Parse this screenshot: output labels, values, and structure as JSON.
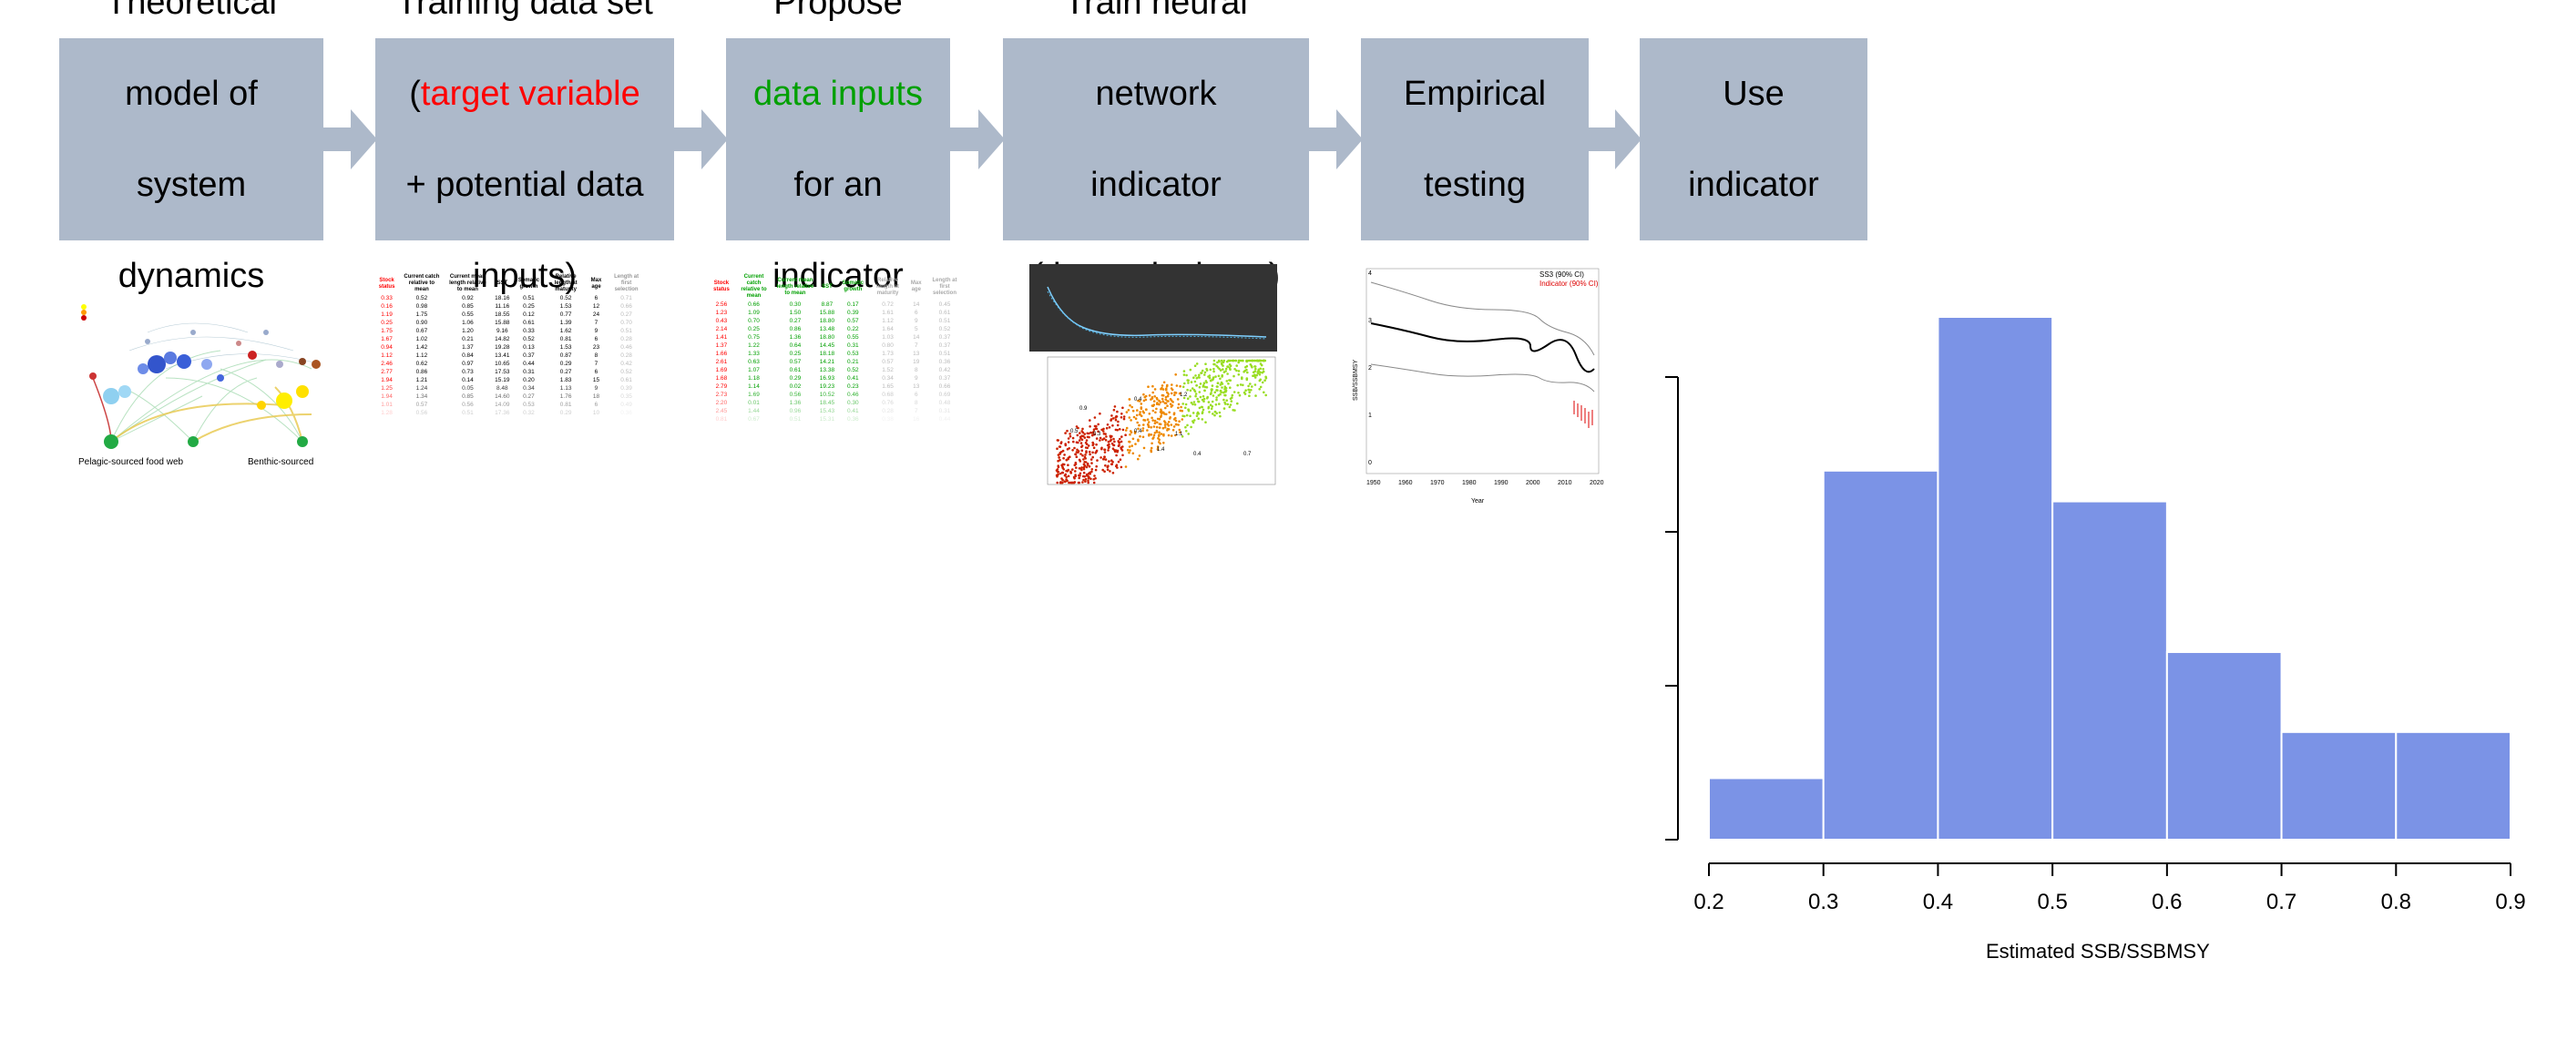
{
  "steps": [
    {
      "lines": [
        "Theoretical",
        "model of",
        "system",
        "dynamics"
      ]
    },
    {
      "line1": "Training data set",
      "paren_open": "(",
      "target": "target variable",
      "line3": "+ potential data",
      "line4": "inputs)"
    },
    {
      "line1": "Propose",
      "inputs": "data inputs",
      "line3": "for an",
      "line4": "indicator"
    },
    {
      "lines": [
        "Train neural",
        "network",
        "indicator",
        "(theoretical test)"
      ]
    },
    {
      "lines": [
        "Empirical",
        "testing"
      ]
    },
    {
      "lines": [
        "Use",
        "indicator"
      ]
    }
  ],
  "foodweb": {
    "pelagic_label": "Pelagic-sourced food web",
    "benthic_label": "Benthic-sourced"
  },
  "table1": {
    "headers": [
      "Stock status",
      "Current catch relative to mean",
      "Current mean length relative to mean",
      "SST",
      "Somatic growth",
      "Relative length at maturity",
      "Max age",
      "Length at first selection"
    ],
    "rows": [
      [
        "0.33",
        "0.52",
        "0.92",
        "18.16",
        "0.51",
        "0.52",
        "6",
        "0.71"
      ],
      [
        "0.16",
        "0.98",
        "0.85",
        "11.16",
        "0.25",
        "1.53",
        "12",
        "0.66"
      ],
      [
        "1.19",
        "1.75",
        "0.55",
        "18.55",
        "0.12",
        "0.77",
        "24",
        "0.27"
      ],
      [
        "0.25",
        "0.90",
        "1.06",
        "15.88",
        "0.61",
        "1.39",
        "7",
        "0.70"
      ],
      [
        "1.75",
        "0.67",
        "1.20",
        "9.16",
        "0.33",
        "1.62",
        "9",
        "0.51"
      ],
      [
        "1.67",
        "1.02",
        "0.21",
        "14.82",
        "0.52",
        "0.81",
        "6",
        "0.28"
      ],
      [
        "0.94",
        "1.42",
        "1.37",
        "19.28",
        "0.13",
        "1.53",
        "23",
        "0.46"
      ],
      [
        "1.12",
        "1.12",
        "0.84",
        "13.41",
        "0.37",
        "0.87",
        "8",
        "0.28"
      ],
      [
        "2.46",
        "0.62",
        "0.97",
        "10.65",
        "0.44",
        "0.29",
        "7",
        "0.42"
      ],
      [
        "2.77",
        "0.86",
        "0.73",
        "17.53",
        "0.31",
        "0.27",
        "6",
        "0.52"
      ],
      [
        "1.94",
        "1.21",
        "0.14",
        "15.19",
        "0.20",
        "1.83",
        "15",
        "0.61"
      ],
      [
        "1.25",
        "1.24",
        "0.05",
        "8.48",
        "0.34",
        "1.13",
        "9",
        "0.39"
      ],
      [
        "1.94",
        "1.34",
        "0.85",
        "14.60",
        "0.27",
        "1.76",
        "18",
        "0.35"
      ],
      [
        "1.01",
        "0.57",
        "0.56",
        "14.09",
        "0.53",
        "0.81",
        "6",
        "0.49"
      ],
      [
        "1.28",
        "0.56",
        "0.51",
        "17.36",
        "0.32",
        "0.29",
        "10",
        "0.36"
      ]
    ]
  },
  "table2": {
    "headers": [
      "Stock status",
      "Current catch relative to mean",
      "Current mean length relative to mean",
      "SST",
      "Somatic growth",
      "Relative length at maturity",
      "Max age",
      "Length at first selection"
    ],
    "rows": [
      [
        "2.56",
        "0.66",
        "0.30",
        "8.87",
        "0.17",
        "0.72",
        "14",
        "0.45"
      ],
      [
        "1.23",
        "1.09",
        "1.50",
        "15.88",
        "0.39",
        "1.61",
        "6",
        "0.61"
      ],
      [
        "0.43",
        "0.70",
        "0.27",
        "18.80",
        "0.57",
        "1.12",
        "9",
        "0.51"
      ],
      [
        "2.14",
        "0.25",
        "0.86",
        "13.48",
        "0.22",
        "1.64",
        "5",
        "0.52"
      ],
      [
        "1.41",
        "0.75",
        "1.36",
        "18.80",
        "0.55",
        "1.03",
        "14",
        "0.37"
      ],
      [
        "1.37",
        "1.22",
        "0.64",
        "14.45",
        "0.31",
        "0.80",
        "7",
        "0.37"
      ],
      [
        "1.66",
        "1.33",
        "0.25",
        "18.18",
        "0.53",
        "1.73",
        "13",
        "0.51"
      ],
      [
        "2.61",
        "0.63",
        "0.57",
        "14.21",
        "0.21",
        "0.57",
        "19",
        "0.36"
      ],
      [
        "1.69",
        "1.07",
        "0.61",
        "13.38",
        "0.52",
        "1.52",
        "8",
        "0.42"
      ],
      [
        "1.68",
        "1.18",
        "0.29",
        "16.93",
        "0.41",
        "0.34",
        "9",
        "0.37"
      ],
      [
        "2.79",
        "1.14",
        "0.02",
        "19.23",
        "0.23",
        "1.65",
        "13",
        "0.66"
      ],
      [
        "2.73",
        "1.69",
        "0.56",
        "10.52",
        "0.46",
        "0.68",
        "6",
        "0.69"
      ],
      [
        "2.20",
        "0.01",
        "1.36",
        "18.45",
        "0.30",
        "0.76",
        "8",
        "0.48"
      ],
      [
        "2.45",
        "1.44",
        "0.96",
        "15.43",
        "0.41",
        "0.28",
        "7",
        "0.31"
      ],
      [
        "0.81",
        "0.67",
        "0.51",
        "15.31",
        "0.36",
        "0.38",
        "16",
        "0.44"
      ]
    ]
  },
  "scatter_labels": [
    "0.9",
    "0.4",
    "1.2",
    "0.5",
    "0.3",
    "0.4",
    "1.1",
    "1.4",
    "0.4",
    "0.7"
  ],
  "timeseries": {
    "legend1": "SS3 (90% CI)",
    "legend2": "Indicator (90% CI)",
    "ylabel": "SSB/SSBMSY",
    "xlabel": "Year",
    "xticks": [
      "1950",
      "1960",
      "1970",
      "1980",
      "1990",
      "2000",
      "2010",
      "2020"
    ],
    "yticks": [
      "0",
      "1",
      "2",
      "3",
      "4"
    ]
  },
  "chart_data": {
    "type": "bar",
    "title": "",
    "xlabel": "Estimated SSB/SSBMSY",
    "ylabel": "",
    "bin_edges": [
      0.2,
      0.3,
      0.4,
      0.5,
      0.6,
      0.7,
      0.8,
      0.9
    ],
    "values": [
      1,
      6,
      8.5,
      5.5,
      3.05,
      1.75,
      1.75
    ],
    "xticks": [
      "0.2",
      "0.3",
      "0.4",
      "0.5",
      "0.6",
      "0.7",
      "0.8",
      "0.9"
    ],
    "xlim": [
      0.2,
      0.9
    ],
    "ylim": [
      0,
      8.5
    ],
    "bar_color": "#7b93e6"
  }
}
